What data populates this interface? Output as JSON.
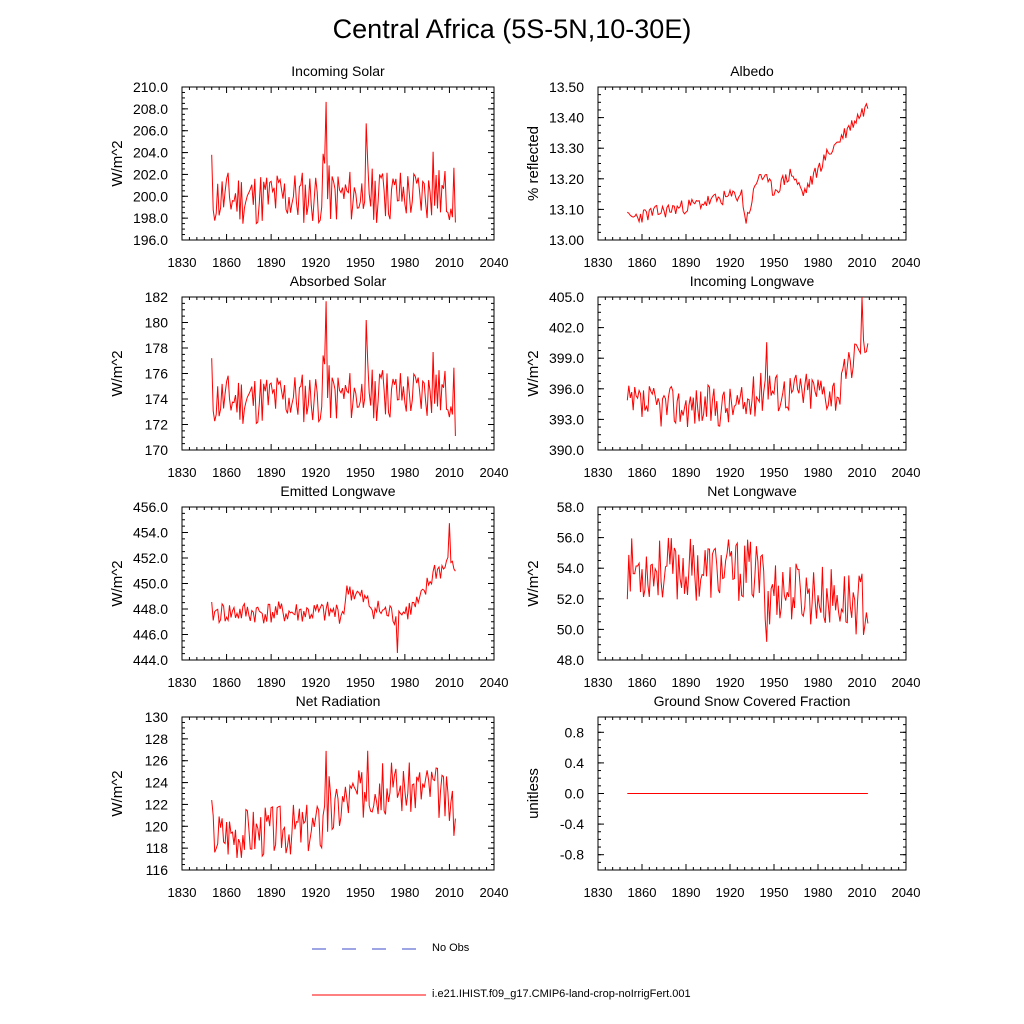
{
  "title": "Central Africa (5S-5N,10-30E)",
  "colors": {
    "model": "#ff0000",
    "obs": "#3b4bc8",
    "axis": "#000000"
  },
  "legend": {
    "obs_label": "No Obs",
    "model_label": "i.e21.IHIST.f09_g17.CMIP6-land-crop-noIrrigFert.001"
  },
  "chart_data": [
    {
      "type": "line",
      "title": "Incoming Solar",
      "ylabel": "W/m^2",
      "xlim": [
        1830,
        2040
      ],
      "ylim": [
        196,
        210
      ],
      "xticks": [
        "1830",
        "1860",
        "1890",
        "1920",
        "1950",
        "1980",
        "2010",
        "2040"
      ],
      "yticks": [
        "196.0",
        "198.0",
        "200.0",
        "202.0",
        "204.0",
        "206.0",
        "208.0",
        "210.0"
      ],
      "series": [
        {
          "x_start": 1850,
          "x_end": 2014,
          "seed": 11,
          "base": 199.8,
          "base_end": 200.2,
          "amp": 1.6,
          "events": [
            [
              1927,
              8.8
            ],
            [
              1954,
              4.5
            ],
            [
              1965,
              3.8
            ],
            [
              1999,
              3.0
            ]
          ],
          "first": 203.8,
          "last": 197.6
        }
      ]
    },
    {
      "type": "line",
      "title": "Albedo",
      "ylabel": "% reflected",
      "xlim": [
        1830,
        2040
      ],
      "ylim": [
        13.0,
        13.5
      ],
      "xticks": [
        "1830",
        "1860",
        "1890",
        "1920",
        "1950",
        "1980",
        "2010",
        "2040"
      ],
      "yticks": [
        "13.00",
        "13.10",
        "13.20",
        "13.30",
        "13.40",
        "13.50"
      ],
      "series": [
        {
          "x_start": 1850,
          "x_end": 2014,
          "seed": 23,
          "trend": [
            [
              1850,
              13.07
            ],
            [
              1900,
              13.12
            ],
            [
              1928,
              13.15
            ],
            [
              1931,
              13.06
            ],
            [
              1940,
              13.22
            ],
            [
              1950,
              13.16
            ],
            [
              1962,
              13.22
            ],
            [
              1970,
              13.15
            ],
            [
              1985,
              13.27
            ],
            [
              1995,
              13.33
            ],
            [
              2005,
              13.39
            ],
            [
              2014,
              13.44
            ]
          ],
          "amp": 0.015
        }
      ]
    },
    {
      "type": "line",
      "title": "Absorbed Solar",
      "ylabel": "W/m^2",
      "xlim": [
        1830,
        2040
      ],
      "ylim": [
        170,
        182
      ],
      "xticks": [
        "1830",
        "1860",
        "1890",
        "1920",
        "1950",
        "1980",
        "2010",
        "2040"
      ],
      "yticks": [
        "170",
        "172",
        "174",
        "176",
        "178",
        "180",
        "182"
      ],
      "series": [
        {
          "x_start": 1850,
          "x_end": 2014,
          "seed": 11,
          "base": 173.9,
          "base_end": 174.5,
          "amp": 1.3,
          "events": [
            [
              1927,
              7.6
            ],
            [
              1954,
              4.2
            ],
            [
              1965,
              3.4
            ],
            [
              1999,
              2.5
            ]
          ],
          "first": 177.2,
          "last": 171.1
        }
      ]
    },
    {
      "type": "line",
      "title": "Incoming Longwave",
      "ylabel": "W/m^2",
      "xlim": [
        1830,
        2040
      ],
      "ylim": [
        390,
        405
      ],
      "xticks": [
        "1830",
        "1860",
        "1890",
        "1920",
        "1950",
        "1980",
        "2010",
        "2040"
      ],
      "yticks": [
        "390.0",
        "393.0",
        "396.0",
        "399.0",
        "402.0",
        "405.0"
      ],
      "series": [
        {
          "x_start": 1850,
          "x_end": 2014,
          "seed": 37,
          "trend": [
            [
              1850,
              394.3
            ],
            [
              1930,
              394.3
            ],
            [
              1940,
              395.8
            ],
            [
              1995,
              395.8
            ],
            [
              2005,
              399.5
            ],
            [
              2014,
              400.8
            ]
          ],
          "amp": 1.3,
          "events": [
            [
              1945,
              6.2
            ],
            [
              2010,
              3.5
            ]
          ]
        }
      ]
    },
    {
      "type": "line",
      "title": "Emitted Longwave",
      "ylabel": "W/m^2",
      "xlim": [
        1830,
        2040
      ],
      "ylim": [
        444,
        456
      ],
      "xticks": [
        "1830",
        "1860",
        "1890",
        "1920",
        "1950",
        "1980",
        "2010",
        "2040"
      ],
      "yticks": [
        "444.0",
        "446.0",
        "448.0",
        "450.0",
        "452.0",
        "454.0",
        "456.0"
      ],
      "series": [
        {
          "x_start": 1850,
          "x_end": 2014,
          "seed": 41,
          "trend": [
            [
              1850,
              447.7
            ],
            [
              1938,
              447.7
            ],
            [
              1942,
              449.6
            ],
            [
              1960,
              448.0
            ],
            [
              1975,
              447.4
            ],
            [
              1990,
              448.4
            ],
            [
              2000,
              451.0
            ],
            [
              2014,
              451.3
            ]
          ],
          "amp": 0.55,
          "events": [
            [
              1975,
              -2.0
            ],
            [
              2010,
              2.8
            ]
          ]
        }
      ]
    },
    {
      "type": "line",
      "title": "Net Longwave",
      "ylabel": "W/m^2",
      "xlim": [
        1830,
        2040
      ],
      "ylim": [
        48,
        58
      ],
      "xticks": [
        "1830",
        "1860",
        "1890",
        "1920",
        "1950",
        "1980",
        "2010",
        "2040"
      ],
      "yticks": [
        "48.0",
        "50.0",
        "52.0",
        "54.0",
        "56.0",
        "58.0"
      ],
      "series": [
        {
          "x_start": 1850,
          "x_end": 2014,
          "seed": 53,
          "trend": [
            [
              1850,
              54.0
            ],
            [
              1935,
              53.8
            ],
            [
              1950,
              52.7
            ],
            [
              2014,
              51.6
            ]
          ],
          "amp": 1.3,
          "events": [
            [
              1945,
              -4.0
            ]
          ]
        }
      ]
    },
    {
      "type": "line",
      "title": "Net Radiation",
      "ylabel": "W/m^2",
      "xlim": [
        1830,
        2040
      ],
      "ylim": [
        116,
        130
      ],
      "xticks": [
        "1830",
        "1860",
        "1890",
        "1920",
        "1950",
        "1980",
        "2010",
        "2040"
      ],
      "yticks": [
        "116",
        "118",
        "120",
        "122",
        "124",
        "126",
        "128",
        "130"
      ],
      "series": [
        {
          "x_start": 1850,
          "x_end": 2014,
          "seed": 67,
          "trend": [
            [
              1850,
              119.3
            ],
            [
              1925,
              120.0
            ],
            [
              1940,
              122.5
            ],
            [
              1960,
              123.4
            ],
            [
              2000,
              123.6
            ],
            [
              2014,
              121.3
            ]
          ],
          "amp": 1.5,
          "events": [
            [
              1927,
              7.5
            ],
            [
              1955,
              4.8
            ]
          ],
          "first": 122.4,
          "last": 120.7
        }
      ]
    },
    {
      "type": "line",
      "title": "Ground Snow Covered Fraction",
      "ylabel": "unitless",
      "xlim": [
        1830,
        2040
      ],
      "ylim": [
        -1.0,
        1.0
      ],
      "xticks": [
        "1830",
        "1860",
        "1890",
        "1920",
        "1950",
        "1980",
        "2010",
        "2040"
      ],
      "yticks": [
        "-0.8",
        "-0.4",
        "0.0",
        "0.4",
        "0.8"
      ],
      "ytick_values": [
        -0.8,
        -0.4,
        0.0,
        0.4,
        0.8
      ],
      "series": [
        {
          "x_start": 1850,
          "x_end": 2014,
          "constant": 0.0
        }
      ]
    }
  ]
}
